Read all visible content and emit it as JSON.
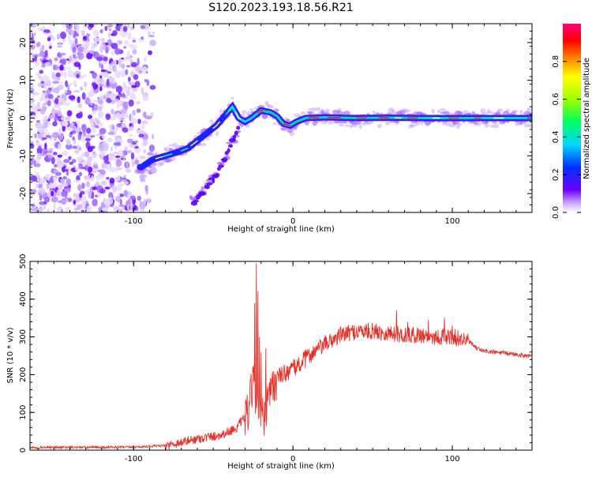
{
  "title": "S120.2023.193.18.56.R21",
  "chart_data": [
    {
      "type": "heatmap",
      "xlabel": "Height of straight line (km)",
      "ylabel": "Frequency (Hz)",
      "xlim": [
        -165,
        150
      ],
      "ylim": [
        -25,
        25
      ],
      "x_ticks": [
        {
          "value": -100,
          "label": "-100"
        },
        {
          "value": 0,
          "label": "0"
        },
        {
          "value": 100,
          "label": "100"
        }
      ],
      "y_ticks": [
        {
          "value": -20,
          "label": "-20"
        },
        {
          "value": -10,
          "label": "-10"
        },
        {
          "value": 0,
          "label": "0"
        },
        {
          "value": 10,
          "label": "10"
        },
        {
          "value": 20,
          "label": "20"
        }
      ],
      "ridge": [
        [
          -95,
          -13
        ],
        [
          -88,
          -11
        ],
        [
          -80,
          -10
        ],
        [
          -72,
          -9
        ],
        [
          -66,
          -8
        ],
        [
          -60,
          -6
        ],
        [
          -54,
          -4
        ],
        [
          -48,
          -2
        ],
        [
          -42,
          1
        ],
        [
          -38,
          3
        ],
        [
          -34,
          0
        ],
        [
          -30,
          -1
        ],
        [
          -26,
          0
        ],
        [
          -20,
          2
        ],
        [
          -14,
          1.5
        ],
        [
          -10,
          0.5
        ],
        [
          -6,
          -1.5
        ],
        [
          -2,
          -2
        ],
        [
          2,
          -1
        ],
        [
          8,
          0
        ],
        [
          20,
          0.2
        ],
        [
          40,
          0
        ],
        [
          60,
          0.1
        ],
        [
          80,
          0
        ],
        [
          100,
          0
        ],
        [
          120,
          0
        ],
        [
          150,
          0
        ]
      ],
      "ridge_secondary": [
        [
          -62,
          -22
        ],
        [
          -55,
          -19
        ],
        [
          -48,
          -15
        ],
        [
          -42,
          -10
        ],
        [
          -38,
          -6
        ],
        [
          -34,
          -3
        ]
      ],
      "colorbar": {
        "label": "Normalized spectral amplitude",
        "range": [
          0,
          1
        ],
        "ticks": [
          {
            "value": 0.0,
            "label": "0.0"
          },
          {
            "value": 0.2,
            "label": "0.2"
          },
          {
            "value": 0.4,
            "label": "0.4"
          },
          {
            "value": 0.6,
            "label": "0.6"
          },
          {
            "value": 0.8,
            "label": "0.8"
          }
        ]
      }
    },
    {
      "type": "line",
      "xlabel": "Height of straight line (km)",
      "ylabel": "SNR (10 * v/v)",
      "xlim": [
        -165,
        150
      ],
      "ylim": [
        0,
        500
      ],
      "x_ticks": [
        {
          "value": -100,
          "label": "-100"
        },
        {
          "value": 0,
          "label": "0"
        },
        {
          "value": 100,
          "label": "100"
        }
      ],
      "y_ticks": [
        {
          "value": 0,
          "label": "0"
        },
        {
          "value": 100,
          "label": "100"
        },
        {
          "value": 200,
          "label": "200"
        },
        {
          "value": 300,
          "label": "300"
        },
        {
          "value": 400,
          "label": "400"
        },
        {
          "value": 500,
          "label": "500"
        }
      ],
      "color": "#e8302a",
      "series_profile": [
        [
          -165,
          7
        ],
        [
          -100,
          8
        ],
        [
          -80,
          12
        ],
        [
          -60,
          30
        ],
        [
          -45,
          40
        ],
        [
          -35,
          60
        ],
        [
          -28,
          100
        ],
        [
          -25,
          180
        ],
        [
          -22,
          120
        ],
        [
          -18,
          80
        ],
        [
          -15,
          140
        ],
        [
          -10,
          190
        ],
        [
          -5,
          205
        ],
        [
          0,
          215
        ],
        [
          5,
          230
        ],
        [
          10,
          250
        ],
        [
          20,
          280
        ],
        [
          30,
          305
        ],
        [
          40,
          315
        ],
        [
          50,
          315
        ],
        [
          60,
          310
        ],
        [
          70,
          305
        ],
        [
          80,
          305
        ],
        [
          90,
          300
        ],
        [
          100,
          300
        ],
        [
          110,
          290
        ],
        [
          115,
          270
        ],
        [
          120,
          262
        ],
        [
          130,
          258
        ],
        [
          140,
          254
        ],
        [
          150,
          248
        ]
      ],
      "spikes": [
        [
          -23,
          495
        ],
        [
          -22,
          420
        ],
        [
          -24,
          390
        ],
        [
          -21,
          300
        ],
        [
          -20,
          260
        ],
        [
          -17,
          270
        ],
        [
          -12,
          210
        ],
        [
          65,
          370
        ],
        [
          72,
          340
        ],
        [
          85,
          345
        ],
        [
          95,
          350
        ],
        [
          100,
          330
        ]
      ]
    }
  ]
}
